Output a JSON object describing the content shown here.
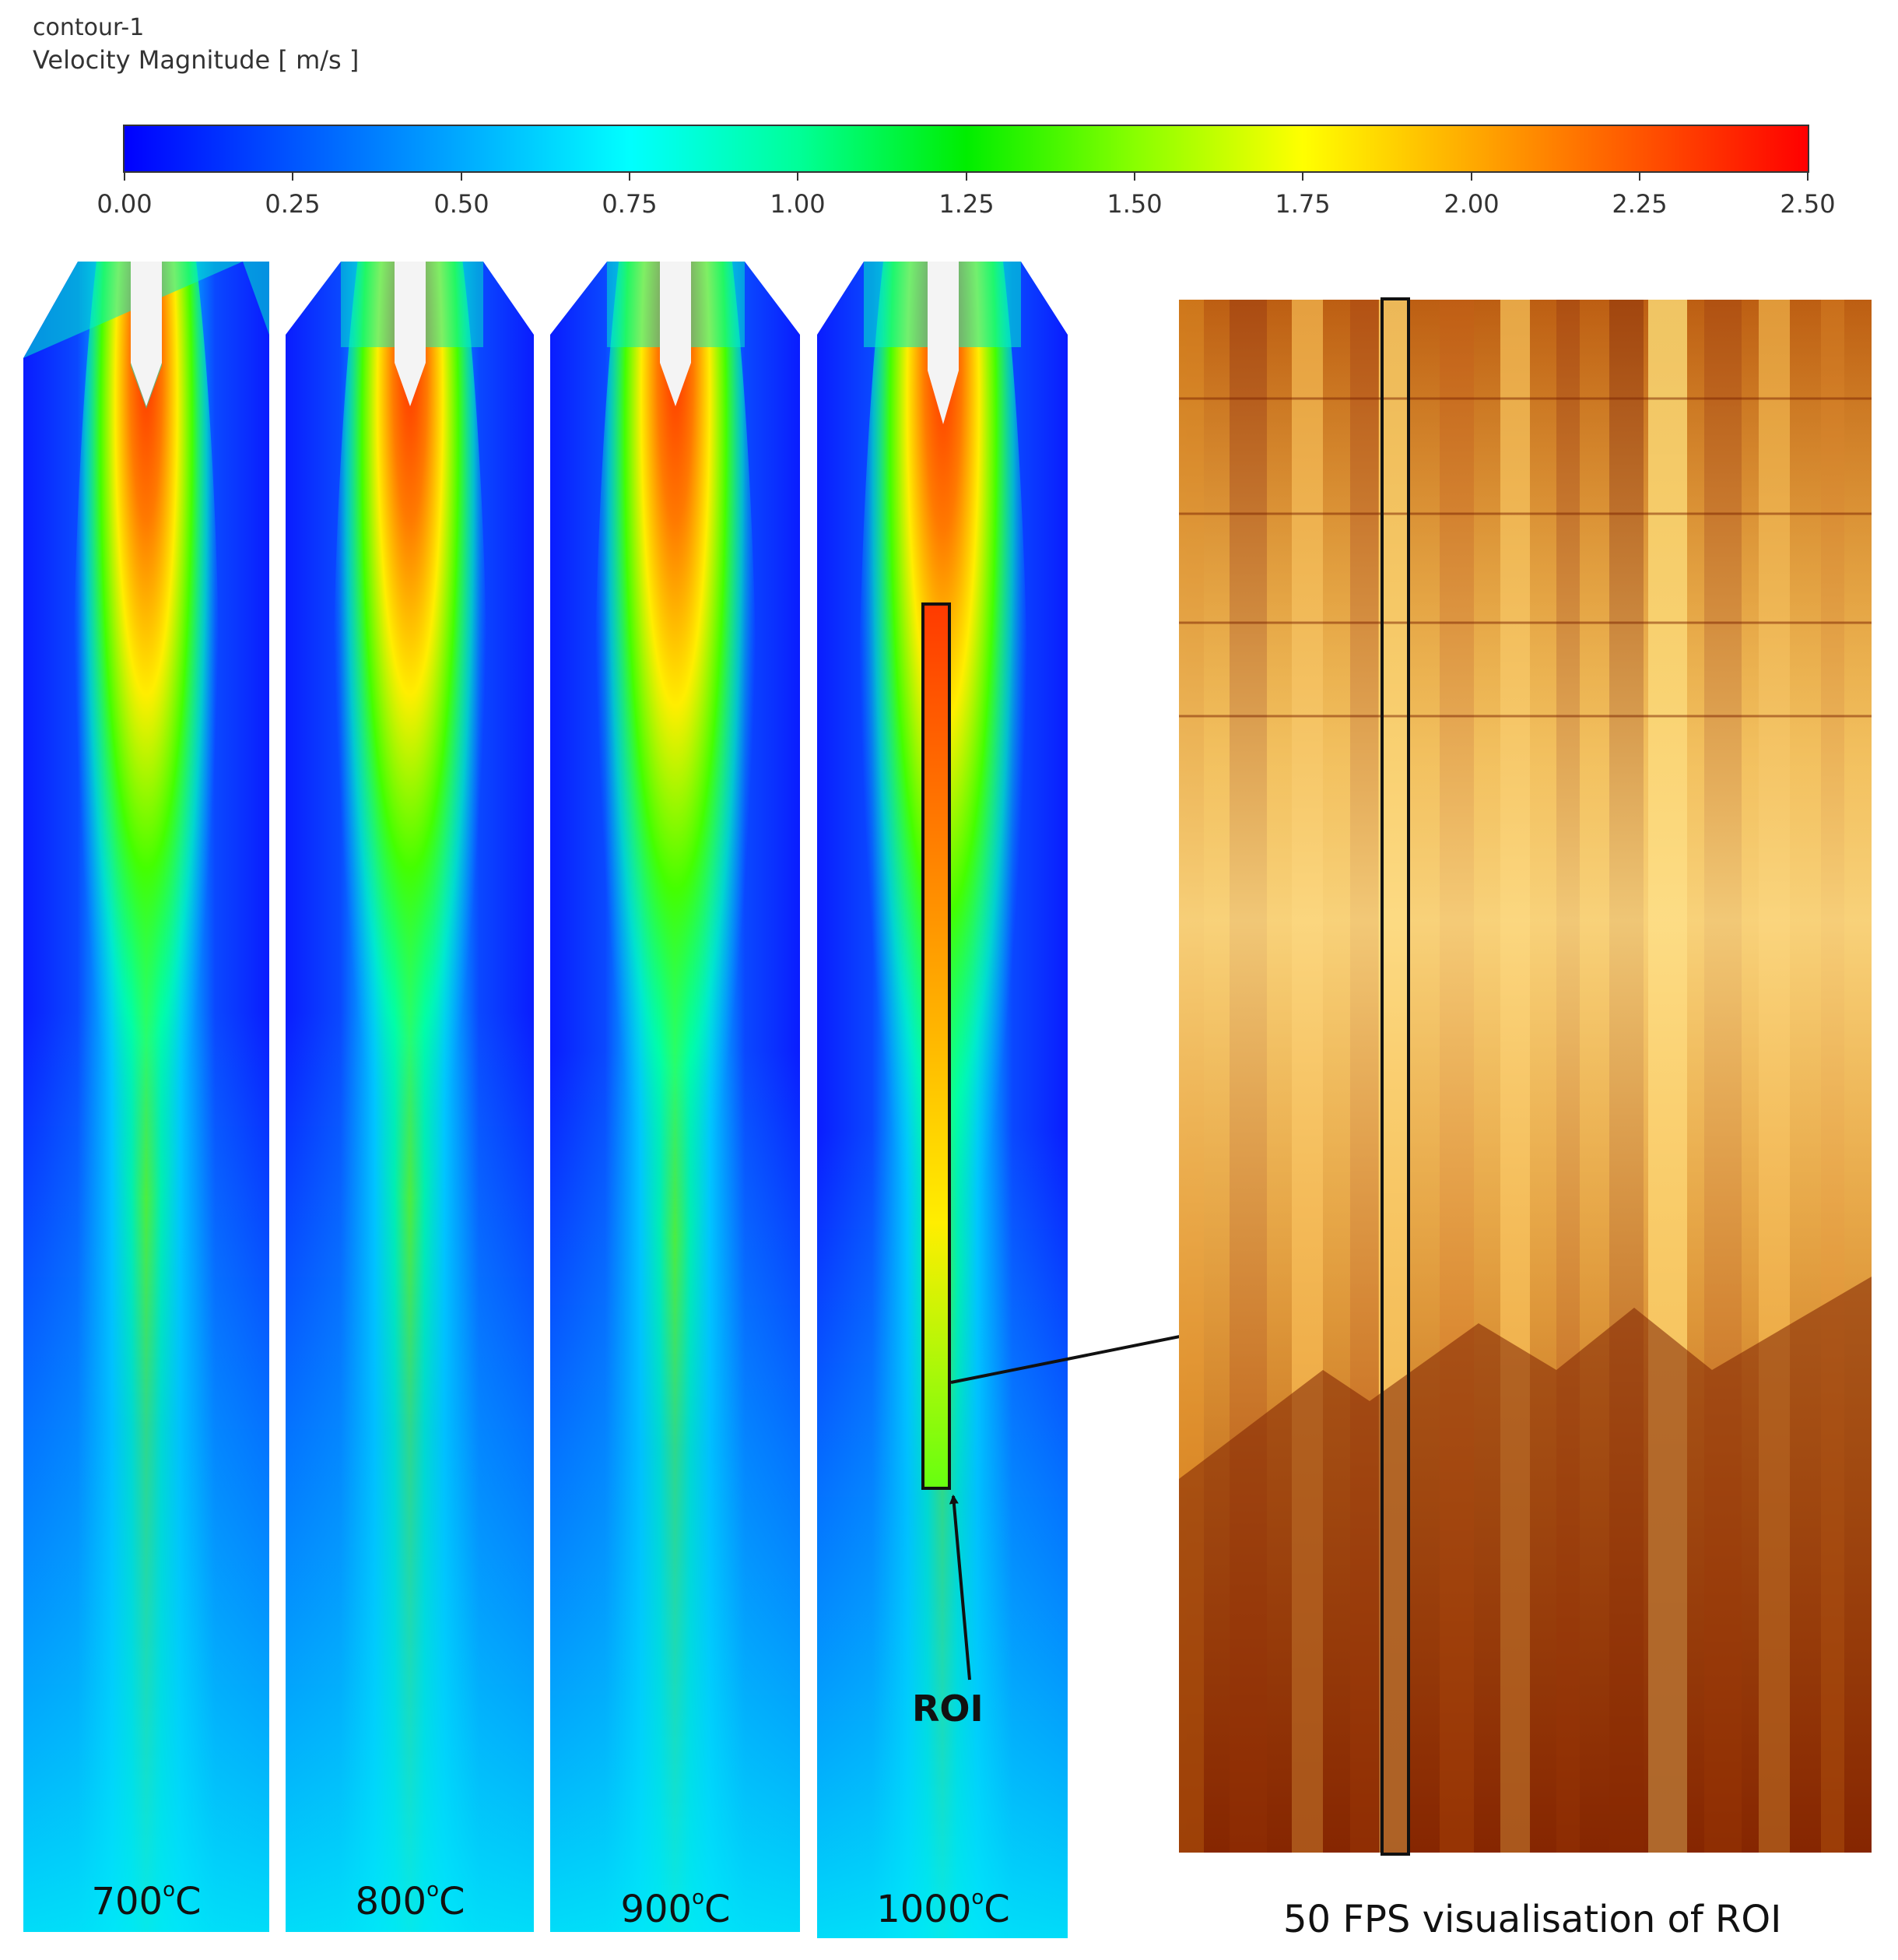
{
  "header": {
    "title": "contour-1",
    "quantity": "Velocity Magnitude [ m/s ]"
  },
  "colorbar": {
    "min": 0.0,
    "max": 2.5,
    "ticks": [
      "0.00",
      "0.25",
      "0.50",
      "0.75",
      "1.00",
      "1.25",
      "1.50",
      "1.75",
      "2.00",
      "2.25",
      "2.50"
    ],
    "colors": [
      "#0000ff",
      "#0055ff",
      "#00aaff",
      "#00ffff",
      "#00ff99",
      "#00ee00",
      "#88ff00",
      "#ffff00",
      "#ffaa00",
      "#ff5500",
      "#ff0000"
    ]
  },
  "panels": [
    {
      "temperature": "700",
      "unit": "C"
    },
    {
      "temperature": "800",
      "unit": "C"
    },
    {
      "temperature": "900",
      "unit": "C"
    },
    {
      "temperature": "1000",
      "unit": "C"
    }
  ],
  "roi_label": "ROI",
  "fps_caption": "50 FPS visualisation of ROI"
}
